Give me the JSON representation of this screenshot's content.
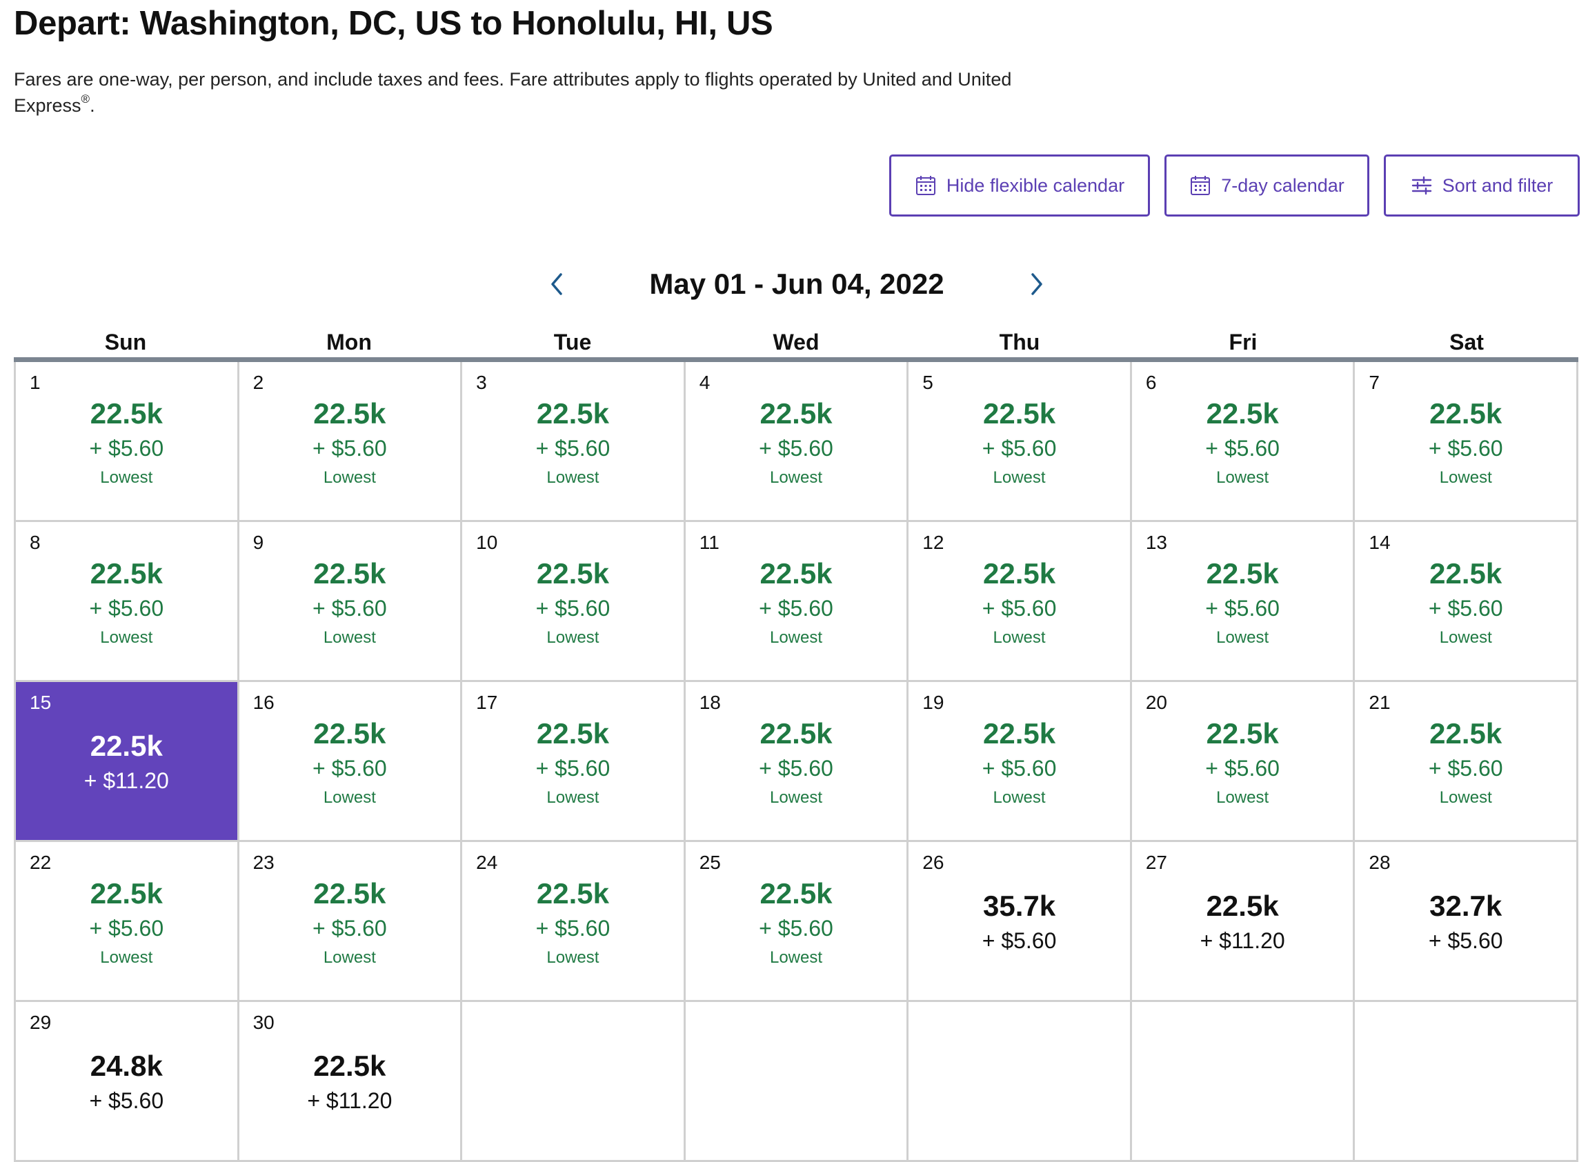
{
  "header": {
    "title": "Depart: Washington, DC, US to Honolulu, HI, US",
    "subtitle": "Fares are one-way, per person, and include taxes and fees. Fare attributes apply to flights operated by United and United Express",
    "subtitle_mark": "®",
    "subtitle_end": "."
  },
  "buttons": {
    "hide_flexible": "Hide flexible calendar",
    "seven_day": "7-day calendar",
    "sort_filter": "Sort and filter"
  },
  "calendar": {
    "range_label": "May 01 - Jun 04, 2022",
    "weekdays": [
      "Sun",
      "Mon",
      "Tue",
      "Wed",
      "Thu",
      "Fri",
      "Sat"
    ],
    "lowest_label": "Lowest",
    "selected_day": "15",
    "accent_color": "#6244bb",
    "lowest_color": "#1f7a43",
    "days": [
      {
        "day": "1",
        "miles": "22.5k",
        "tax": "+ $5.60",
        "note": "Lowest"
      },
      {
        "day": "2",
        "miles": "22.5k",
        "tax": "+ $5.60",
        "note": "Lowest"
      },
      {
        "day": "3",
        "miles": "22.5k",
        "tax": "+ $5.60",
        "note": "Lowest"
      },
      {
        "day": "4",
        "miles": "22.5k",
        "tax": "+ $5.60",
        "note": "Lowest"
      },
      {
        "day": "5",
        "miles": "22.5k",
        "tax": "+ $5.60",
        "note": "Lowest"
      },
      {
        "day": "6",
        "miles": "22.5k",
        "tax": "+ $5.60",
        "note": "Lowest"
      },
      {
        "day": "7",
        "miles": "22.5k",
        "tax": "+ $5.60",
        "note": "Lowest"
      },
      {
        "day": "8",
        "miles": "22.5k",
        "tax": "+ $5.60",
        "note": "Lowest"
      },
      {
        "day": "9",
        "miles": "22.5k",
        "tax": "+ $5.60",
        "note": "Lowest"
      },
      {
        "day": "10",
        "miles": "22.5k",
        "tax": "+ $5.60",
        "note": "Lowest"
      },
      {
        "day": "11",
        "miles": "22.5k",
        "tax": "+ $5.60",
        "note": "Lowest"
      },
      {
        "day": "12",
        "miles": "22.5k",
        "tax": "+ $5.60",
        "note": "Lowest"
      },
      {
        "day": "13",
        "miles": "22.5k",
        "tax": "+ $5.60",
        "note": "Lowest"
      },
      {
        "day": "14",
        "miles": "22.5k",
        "tax": "+ $5.60",
        "note": "Lowest"
      },
      {
        "day": "15",
        "miles": "22.5k",
        "tax": "+ $11.20",
        "note": "",
        "selected": true
      },
      {
        "day": "16",
        "miles": "22.5k",
        "tax": "+ $5.60",
        "note": "Lowest"
      },
      {
        "day": "17",
        "miles": "22.5k",
        "tax": "+ $5.60",
        "note": "Lowest"
      },
      {
        "day": "18",
        "miles": "22.5k",
        "tax": "+ $5.60",
        "note": "Lowest"
      },
      {
        "day": "19",
        "miles": "22.5k",
        "tax": "+ $5.60",
        "note": "Lowest"
      },
      {
        "day": "20",
        "miles": "22.5k",
        "tax": "+ $5.60",
        "note": "Lowest"
      },
      {
        "day": "21",
        "miles": "22.5k",
        "tax": "+ $5.60",
        "note": "Lowest"
      },
      {
        "day": "22",
        "miles": "22.5k",
        "tax": "+ $5.60",
        "note": "Lowest"
      },
      {
        "day": "23",
        "miles": "22.5k",
        "tax": "+ $5.60",
        "note": "Lowest"
      },
      {
        "day": "24",
        "miles": "22.5k",
        "tax": "+ $5.60",
        "note": "Lowest"
      },
      {
        "day": "25",
        "miles": "22.5k",
        "tax": "+ $5.60",
        "note": "Lowest"
      },
      {
        "day": "26",
        "miles": "35.7k",
        "tax": "+ $5.60",
        "note": ""
      },
      {
        "day": "27",
        "miles": "22.5k",
        "tax": "+ $11.20",
        "note": ""
      },
      {
        "day": "28",
        "miles": "32.7k",
        "tax": "+ $5.60",
        "note": ""
      },
      {
        "day": "29",
        "miles": "24.8k",
        "tax": "+ $5.60",
        "note": ""
      },
      {
        "day": "30",
        "miles": "22.5k",
        "tax": "+ $11.20",
        "note": ""
      }
    ]
  }
}
